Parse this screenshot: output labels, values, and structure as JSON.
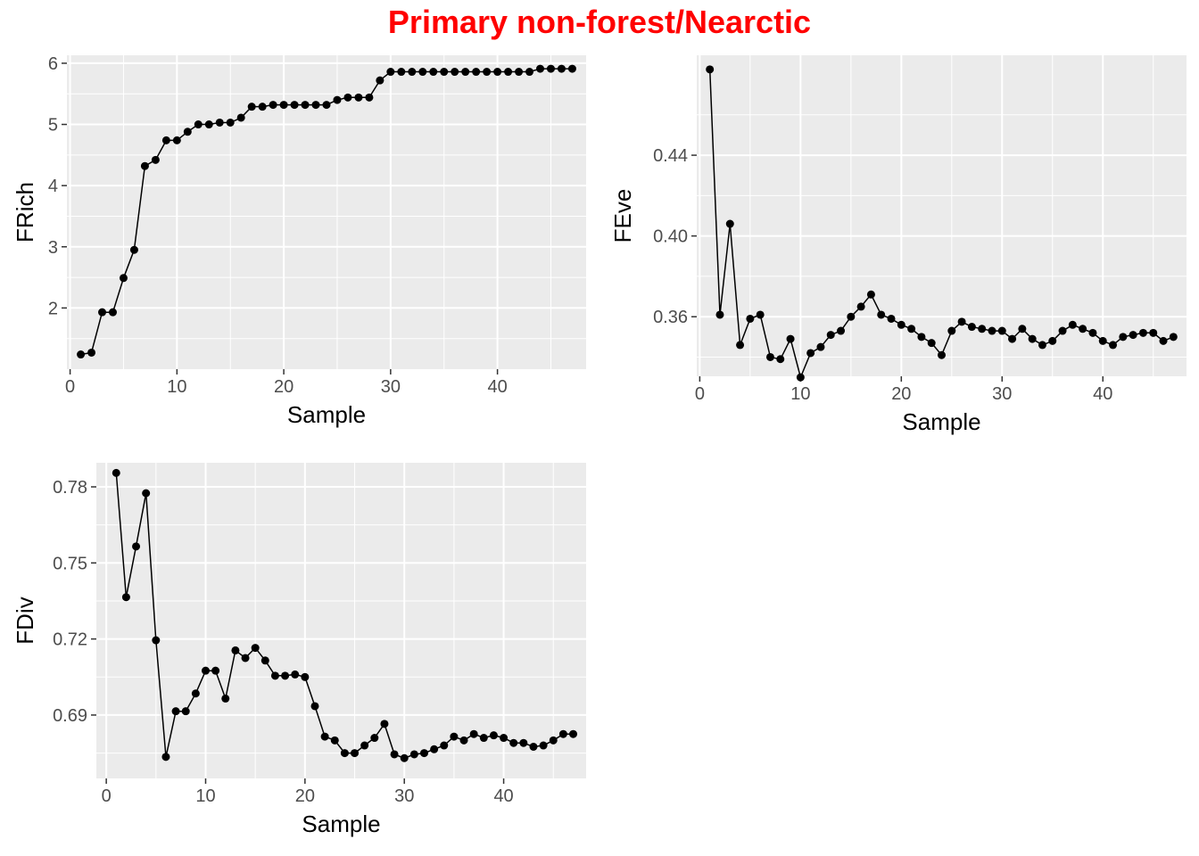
{
  "title": "Primary non-forest/Nearctic",
  "title_color": "#ff0000",
  "panel_bg": "#ebebeb",
  "grid_color": "#ffffff",
  "line_color": "#000000",
  "chart_data": [
    {
      "type": "line",
      "name": "frich",
      "ylabel": "FRich",
      "xlabel": "Sample",
      "xlim": [
        -0.3,
        48.3
      ],
      "ylim": [
        1.0,
        6.13
      ],
      "xticks": [
        0,
        10,
        20,
        30,
        40
      ],
      "yticks": [
        2,
        3,
        4,
        5,
        6
      ],
      "x": [
        1,
        2,
        3,
        4,
        5,
        6,
        7,
        8,
        9,
        10,
        11,
        12,
        13,
        14,
        15,
        16,
        17,
        18,
        19,
        20,
        21,
        22,
        23,
        24,
        25,
        26,
        27,
        28,
        29,
        30,
        31,
        32,
        33,
        34,
        35,
        36,
        37,
        38,
        39,
        40,
        41,
        42,
        43,
        44,
        45,
        46,
        47
      ],
      "values": [
        1.24,
        1.27,
        1.93,
        1.93,
        2.49,
        2.95,
        4.32,
        4.42,
        4.74,
        4.74,
        4.88,
        5.0,
        5.0,
        5.03,
        5.03,
        5.11,
        5.29,
        5.29,
        5.32,
        5.32,
        5.32,
        5.32,
        5.32,
        5.32,
        5.4,
        5.44,
        5.44,
        5.44,
        5.72,
        5.86,
        5.86,
        5.86,
        5.86,
        5.86,
        5.86,
        5.86,
        5.86,
        5.86,
        5.86,
        5.86,
        5.86,
        5.86,
        5.86,
        5.91,
        5.91,
        5.91,
        5.91
      ]
    },
    {
      "type": "line",
      "name": "feve",
      "ylabel": "FEve",
      "xlabel": "Sample",
      "xlim": [
        -0.3,
        48.3
      ],
      "ylim": [
        0.3305,
        0.4895
      ],
      "xticks": [
        0,
        10,
        20,
        30,
        40
      ],
      "yticks": [
        0.36,
        0.4,
        0.44
      ],
      "ytick_labels": [
        "0.36",
        "0.40",
        "0.44"
      ],
      "x": [
        1,
        2,
        3,
        4,
        5,
        6,
        7,
        8,
        9,
        10,
        11,
        12,
        13,
        14,
        15,
        16,
        17,
        18,
        19,
        20,
        21,
        22,
        23,
        24,
        25,
        26,
        27,
        28,
        29,
        30,
        31,
        32,
        33,
        34,
        35,
        36,
        37,
        38,
        39,
        40,
        41,
        42,
        43,
        44,
        45,
        46,
        47
      ],
      "values": [
        0.4825,
        0.361,
        0.406,
        0.346,
        0.359,
        0.361,
        0.34,
        0.339,
        0.349,
        0.33,
        0.342,
        0.345,
        0.351,
        0.353,
        0.36,
        0.365,
        0.371,
        0.361,
        0.359,
        0.356,
        0.354,
        0.35,
        0.347,
        0.341,
        0.353,
        0.3575,
        0.355,
        0.354,
        0.353,
        0.353,
        0.349,
        0.354,
        0.349,
        0.346,
        0.348,
        0.353,
        0.356,
        0.354,
        0.352,
        0.348,
        0.346,
        0.35,
        0.351,
        0.352,
        0.352,
        0.348,
        0.35
      ]
    },
    {
      "type": "line",
      "name": "fdiv",
      "ylabel": "FDiv",
      "xlabel": "Sample",
      "xlim": [
        -1.0,
        48.3
      ],
      "ylim": [
        0.665,
        0.7895
      ],
      "xticks": [
        0,
        10,
        20,
        30,
        40
      ],
      "yticks": [
        0.69,
        0.72,
        0.75,
        0.78
      ],
      "ytick_labels": [
        "0.69",
        "0.72",
        "0.75",
        "0.78"
      ],
      "x": [
        1,
        2,
        3,
        4,
        5,
        6,
        7,
        8,
        9,
        10,
        11,
        12,
        13,
        14,
        15,
        16,
        17,
        18,
        19,
        20,
        21,
        22,
        23,
        24,
        25,
        26,
        27,
        28,
        29,
        30,
        31,
        32,
        33,
        34,
        35,
        36,
        37,
        38,
        39,
        40,
        41,
        42,
        43,
        44,
        45,
        46,
        47
      ],
      "values": [
        0.7855,
        0.7365,
        0.7565,
        0.7775,
        0.7195,
        0.6735,
        0.6915,
        0.6915,
        0.6985,
        0.7075,
        0.7075,
        0.6965,
        0.7155,
        0.7125,
        0.7165,
        0.7115,
        0.7055,
        0.7055,
        0.706,
        0.705,
        0.6935,
        0.6815,
        0.68,
        0.675,
        0.675,
        0.678,
        0.681,
        0.6865,
        0.6745,
        0.673,
        0.6745,
        0.675,
        0.6765,
        0.678,
        0.6815,
        0.68,
        0.6825,
        0.681,
        0.682,
        0.681,
        0.679,
        0.679,
        0.6775,
        0.678,
        0.68,
        0.6825,
        0.6825
      ]
    }
  ]
}
